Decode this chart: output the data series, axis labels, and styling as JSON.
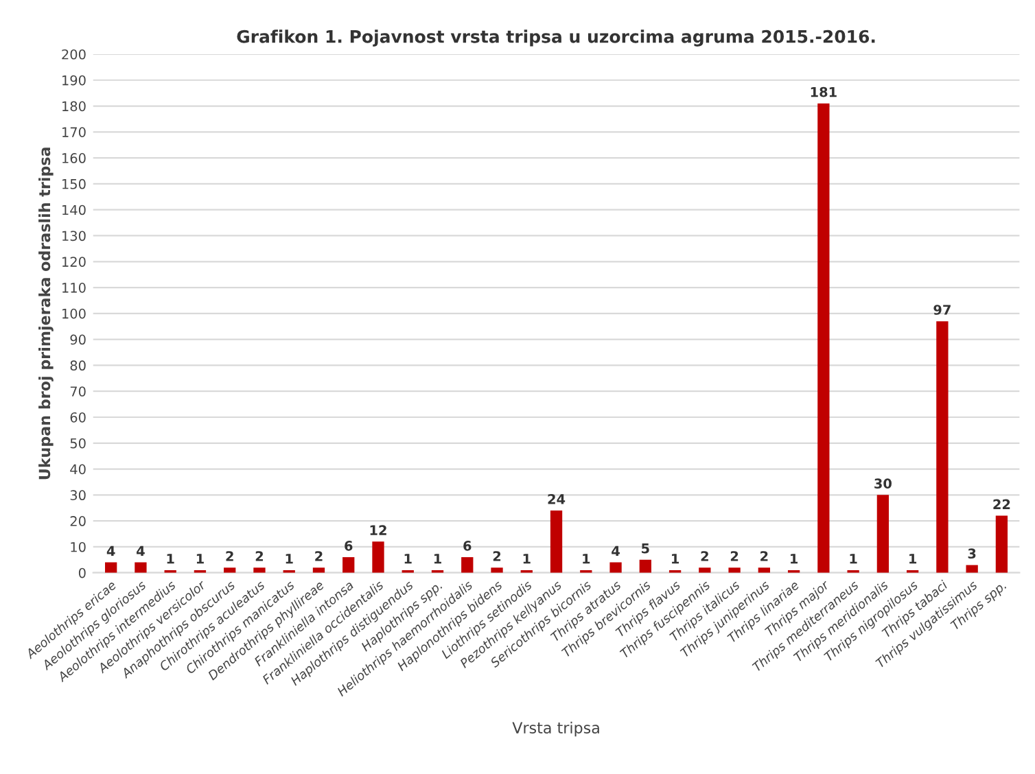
{
  "chart_data": {
    "type": "bar",
    "title": "Grafikon 1. Pojavnost vrsta tripsa u uzorcima agruma 2015.-2016.",
    "xlabel": "Vrsta tripsa",
    "ylabel": "Ukupan broj primjeraka odraslih tripsa",
    "categories": [
      "Aeolothrips ericae",
      "Aeolothrips gloriosus",
      "Aeolothrips intermedius",
      "Aeolothrips versicolor",
      "Anaphothrips obscurus",
      "Chirothrips aculeatus",
      "Chirothrips manicatus",
      "Dendrothrips phyllireae",
      "Frankliniella intonsa",
      "Frankliniella occidentalis",
      "Haplothrips distiguendus",
      "Haplothrips spp.",
      "Heliothrips haemorrhoidalis",
      "Haplonothrips bidens",
      "Liothrips setinodis",
      "Pezothrips kellyanus",
      "Sericothrips bicornis",
      "Thrips atratus",
      "Thrips brevicornis",
      "Thrips flavus",
      "Thrips fuscipennis",
      "Thrips italicus",
      "Thrips juniperinus",
      "Thrips linariae",
      "Thrips major",
      "Thrips mediterraneus",
      "Thrips meridionalis",
      "Thrips nigropilosus",
      "Thrips tabaci",
      "Thrips vulgatissimus",
      "Thrips spp."
    ],
    "values": [
      4,
      4,
      1,
      1,
      2,
      2,
      1,
      2,
      6,
      12,
      1,
      1,
      6,
      2,
      1,
      24,
      1,
      4,
      5,
      1,
      2,
      2,
      2,
      1,
      181,
      1,
      30,
      1,
      97,
      3,
      22
    ],
    "color": "#c00000",
    "data_labels": true,
    "grid": "y",
    "ylim": [
      0,
      200
    ],
    "yticks": [
      0,
      10,
      20,
      30,
      40,
      50,
      60,
      70,
      80,
      90,
      100,
      110,
      120,
      130,
      140,
      150,
      160,
      170,
      180,
      190,
      200
    ]
  }
}
